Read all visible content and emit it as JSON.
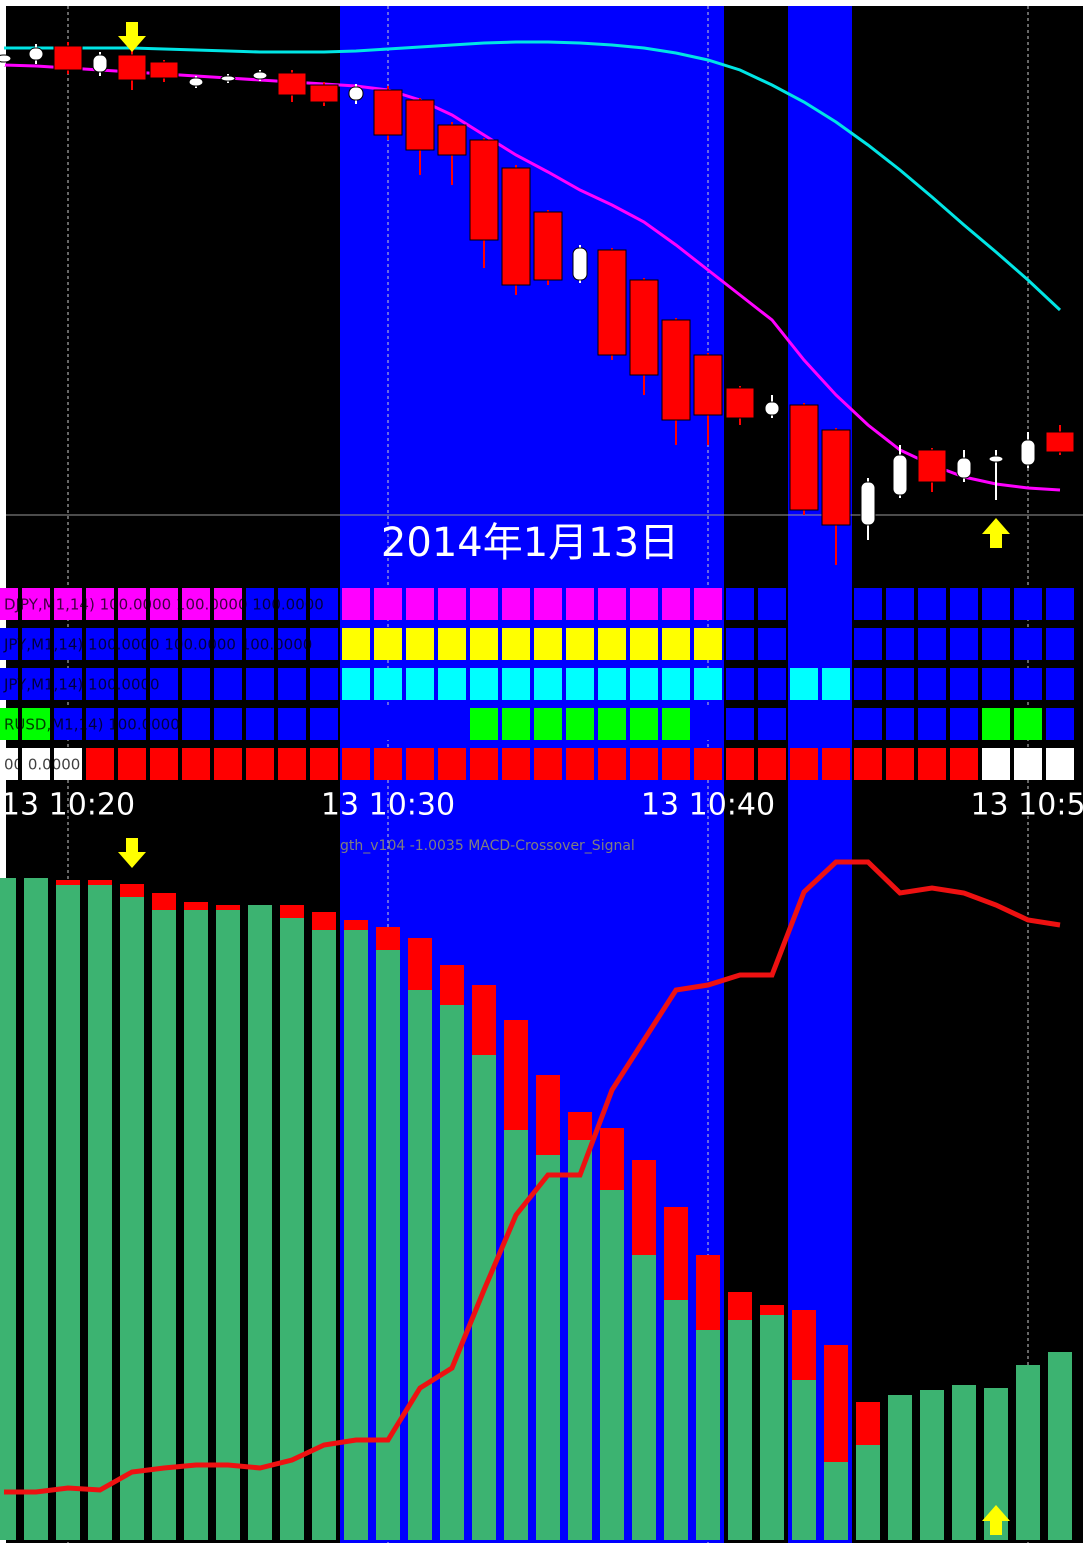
{
  "chart_data": [
    {
      "type": "candlestick",
      "annotation": "2014年1月13日",
      "ylim": [
        0,
        575
      ],
      "up_color": "#ffffff",
      "down_color": "#ff0000",
      "open": [
        518,
        520,
        534,
        508,
        525,
        518,
        494,
        499,
        501,
        507,
        495,
        480,
        490,
        480,
        455,
        440,
        412,
        368,
        300,
        330,
        300,
        260,
        225,
        192,
        165,
        175,
        150,
        55,
        85,
        130,
        102,
        118,
        115,
        148
      ],
      "high": [
        528,
        536,
        538,
        528,
        535,
        520,
        504,
        506,
        510,
        510,
        498,
        496,
        494,
        482,
        458,
        442,
        415,
        370,
        335,
        332,
        302,
        262,
        227,
        194,
        185,
        177,
        152,
        102,
        135,
        132,
        130,
        130,
        148,
        155
      ],
      "low": [
        514,
        516,
        506,
        504,
        490,
        498,
        492,
        497,
        499,
        478,
        474,
        476,
        440,
        405,
        395,
        312,
        285,
        295,
        297,
        220,
        185,
        135,
        135,
        155,
        162,
        65,
        15,
        40,
        82,
        88,
        98,
        80,
        112,
        125
      ],
      "close": [
        525,
        532,
        510,
        525,
        500,
        502,
        502,
        504,
        508,
        485,
        478,
        493,
        445,
        430,
        425,
        340,
        295,
        300,
        332,
        225,
        205,
        160,
        165,
        162,
        178,
        70,
        55,
        98,
        125,
        98,
        122,
        124,
        140,
        128
      ],
      "series": [
        {
          "color": "#00e5e5",
          "values": [
            532,
            532,
            532,
            532,
            532,
            531,
            530,
            529,
            528,
            528,
            528,
            529,
            531,
            533,
            535,
            537,
            538,
            538,
            537,
            535,
            532,
            527,
            520,
            510,
            495,
            478,
            458,
            435,
            410,
            383,
            355,
            328,
            300,
            270
          ]
        },
        {
          "color": "#ff00ff",
          "values": [
            515,
            514,
            512,
            510,
            508,
            506,
            504,
            502,
            500,
            498,
            496,
            494,
            490,
            480,
            465,
            445,
            425,
            408,
            390,
            375,
            358,
            335,
            310,
            285,
            260,
            220,
            185,
            155,
            130,
            115,
            103,
            96,
            92,
            90
          ]
        }
      ],
      "highlight_color": "#0000ff",
      "highlight_ranges": [
        [
          11,
          22
        ],
        [
          25,
          26
        ]
      ],
      "categories": [
        null,
        null,
        "13 10:20",
        null,
        null,
        null,
        null,
        null,
        null,
        null,
        null,
        null,
        "13 10:30",
        null,
        null,
        null,
        null,
        null,
        null,
        null,
        null,
        null,
        "13 10:40",
        null,
        null,
        null,
        null,
        null,
        null,
        null,
        null,
        null,
        "13 10:5",
        null
      ]
    },
    {
      "type": "heatmap",
      "palette": {
        "M": "#ff00ff",
        "B": "#0000ff",
        "Y": "#ffff00",
        "C": "#00ffff",
        "G": "#00ff00",
        "R": "#ff0000",
        "W": "#ffffff"
      },
      "rows": [
        {
          "label": "DJPY,M1,14) 100.0000 100.0000 100.0000",
          "colors": "MMMMMMMMBBBMMMMMMMMMMMMBBBBBBBBBBB"
        },
        {
          "label": "JPY,M1,14) 100.0000 100.0000 100.0000",
          "colors": "BBBBBBBBBBBYYYYYYYYYYYYBBBBBBBBBBB"
        },
        {
          "label": "JPY,M1,14) 100.0000",
          "colors": "BBBBBBBBBBBCCCCCCCCCCCCBBCCBBBBBBB"
        },
        {
          "label": "RUSD,M1,14) 100.0000",
          "colors": "GGBBBBBBBBBBBBBGGGGGGGBBBBBBBBBGGB"
        },
        {
          "label": "00 0.0000",
          "colors": "WWWRRRRRRRRRRRRRRRRRRRRRRRRRRRRWWW"
        }
      ]
    },
    {
      "type": "bar",
      "label": "gth_v104 -1.0035  MACD-Crossover_Signal",
      "ylim": [
        0,
        700
      ],
      "series": [
        {
          "color": "#3cb371",
          "values": [
            662,
            662,
            655,
            655,
            643,
            630,
            630,
            630,
            635,
            622,
            610,
            610,
            590,
            550,
            535,
            485,
            410,
            385,
            400,
            350,
            285,
            240,
            210,
            220,
            225,
            160,
            78,
            95,
            145,
            150,
            155,
            152,
            175,
            188
          ]
        },
        {
          "color": "#ff0000",
          "values": [
            0,
            0,
            5,
            5,
            13,
            17,
            8,
            5,
            0,
            13,
            18,
            10,
            23,
            52,
            40,
            70,
            110,
            80,
            28,
            62,
            95,
            93,
            75,
            28,
            10,
            70,
            117,
            43,
            0,
            0,
            0,
            0,
            0,
            0
          ]
        }
      ],
      "line": {
        "color": "#ee1111",
        "values": [
          48,
          48,
          52,
          50,
          68,
          72,
          75,
          75,
          72,
          80,
          95,
          100,
          100,
          152,
          172,
          250,
          325,
          365,
          365,
          450,
          500,
          550,
          555,
          565,
          565,
          648,
          678,
          678,
          647,
          652,
          647,
          635,
          620,
          615
        ]
      }
    }
  ]
}
